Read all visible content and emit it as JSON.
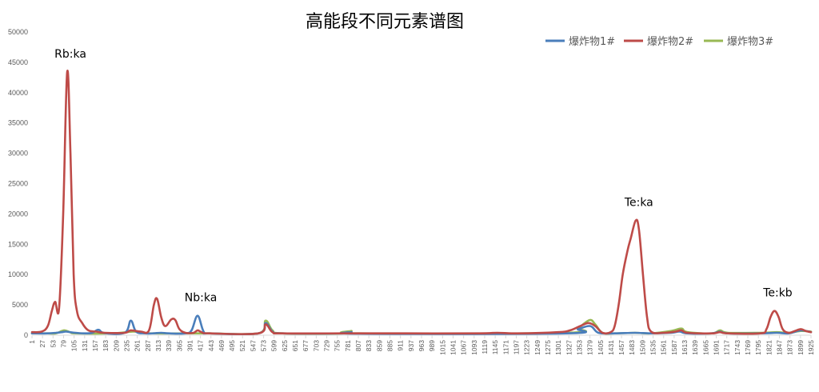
{
  "chart_data": {
    "type": "line",
    "title": "高能段不同元素谱图",
    "xlabel": "",
    "ylabel": "",
    "ylim": [
      0,
      50000
    ],
    "yticks": [
      0,
      5000,
      10000,
      15000,
      20000,
      25000,
      30000,
      35000,
      40000,
      45000,
      50000
    ],
    "xlim": [
      1,
      1925
    ],
    "x_tick_labels": [
      1,
      27,
      53,
      79,
      105,
      131,
      157,
      183,
      209,
      235,
      261,
      287,
      313,
      339,
      365,
      391,
      417,
      443,
      469,
      495,
      521,
      547,
      573,
      599,
      625,
      651,
      677,
      703,
      729,
      755,
      781,
      807,
      833,
      859,
      885,
      911,
      937,
      963,
      989,
      1015,
      1041,
      1067,
      1093,
      1119,
      1145,
      1171,
      1197,
      1223,
      1249,
      1275,
      1301,
      1327,
      1353,
      1379,
      1405,
      1431,
      1457,
      1483,
      1509,
      1535,
      1561,
      1587,
      1613,
      1639,
      1665,
      1691,
      1717,
      1743,
      1769,
      1795,
      1821,
      1847,
      1873,
      1899,
      1925
    ],
    "grid": false,
    "legend_position": "top-right",
    "series": [
      {
        "name": "爆炸物1#",
        "color": "#4a7ebb",
        "points": [
          [
            1,
            300
          ],
          [
            40,
            300
          ],
          [
            60,
            400
          ],
          [
            75,
            500
          ],
          [
            85,
            600
          ],
          [
            100,
            450
          ],
          [
            130,
            300
          ],
          [
            150,
            400
          ],
          [
            165,
            900
          ],
          [
            180,
            350
          ],
          [
            230,
            400
          ],
          [
            245,
            2400
          ],
          [
            258,
            600
          ],
          [
            280,
            300
          ],
          [
            300,
            300
          ],
          [
            320,
            400
          ],
          [
            340,
            300
          ],
          [
            380,
            300
          ],
          [
            395,
            800
          ],
          [
            410,
            3200
          ],
          [
            425,
            600
          ],
          [
            440,
            300
          ],
          [
            560,
            300
          ],
          [
            578,
            2000
          ],
          [
            595,
            600
          ],
          [
            620,
            300
          ],
          [
            770,
            300
          ],
          [
            790,
            500
          ],
          [
            810,
            250
          ],
          [
            1320,
            300
          ],
          [
            1350,
            1000
          ],
          [
            1380,
            1500
          ],
          [
            1400,
            400
          ],
          [
            1440,
            300
          ],
          [
            1490,
            400
          ],
          [
            1530,
            300
          ],
          [
            1580,
            400
          ],
          [
            1600,
            600
          ],
          [
            1620,
            300
          ],
          [
            1680,
            300
          ],
          [
            1700,
            600
          ],
          [
            1720,
            300
          ],
          [
            1800,
            300
          ],
          [
            1840,
            400
          ],
          [
            1870,
            300
          ],
          [
            1900,
            800
          ],
          [
            1925,
            500
          ]
        ]
      },
      {
        "name": "爆炸物2#",
        "color": "#be4b48",
        "points": [
          [
            1,
            500
          ],
          [
            25,
            600
          ],
          [
            40,
            1500
          ],
          [
            50,
            4000
          ],
          [
            58,
            5500
          ],
          [
            68,
            4500
          ],
          [
            78,
            20000
          ],
          [
            88,
            43400
          ],
          [
            96,
            30000
          ],
          [
            104,
            10000
          ],
          [
            112,
            4000
          ],
          [
            125,
            2000
          ],
          [
            140,
            800
          ],
          [
            160,
            600
          ],
          [
            180,
            400
          ],
          [
            230,
            400
          ],
          [
            245,
            800
          ],
          [
            270,
            600
          ],
          [
            290,
            800
          ],
          [
            302,
            5000
          ],
          [
            310,
            6000
          ],
          [
            320,
            3000
          ],
          [
            330,
            1500
          ],
          [
            345,
            2600
          ],
          [
            355,
            2500
          ],
          [
            365,
            1000
          ],
          [
            380,
            400
          ],
          [
            400,
            400
          ],
          [
            410,
            800
          ],
          [
            420,
            500
          ],
          [
            440,
            300
          ],
          [
            560,
            300
          ],
          [
            578,
            1800
          ],
          [
            595,
            500
          ],
          [
            620,
            300
          ],
          [
            770,
            300
          ],
          [
            800,
            300
          ],
          [
            900,
            300
          ],
          [
            1100,
            300
          ],
          [
            1150,
            400
          ],
          [
            1200,
            300
          ],
          [
            1300,
            500
          ],
          [
            1330,
            800
          ],
          [
            1355,
            1500
          ],
          [
            1375,
            2000
          ],
          [
            1392,
            1500
          ],
          [
            1410,
            400
          ],
          [
            1430,
            500
          ],
          [
            1440,
            1500
          ],
          [
            1450,
            5000
          ],
          [
            1460,
            10000
          ],
          [
            1472,
            14000
          ],
          [
            1480,
            16000
          ],
          [
            1492,
            18900
          ],
          [
            1500,
            17500
          ],
          [
            1510,
            10000
          ],
          [
            1520,
            3000
          ],
          [
            1530,
            600
          ],
          [
            1560,
            400
          ],
          [
            1590,
            600
          ],
          [
            1605,
            800
          ],
          [
            1620,
            400
          ],
          [
            1680,
            300
          ],
          [
            1700,
            500
          ],
          [
            1720,
            300
          ],
          [
            1800,
            300
          ],
          [
            1815,
            1000
          ],
          [
            1825,
            3000
          ],
          [
            1835,
            4000
          ],
          [
            1845,
            3000
          ],
          [
            1855,
            1000
          ],
          [
            1870,
            400
          ],
          [
            1885,
            700
          ],
          [
            1900,
            1000
          ],
          [
            1912,
            700
          ],
          [
            1925,
            500
          ]
        ]
      },
      {
        "name": "爆炸物3#",
        "color": "#98b954",
        "points": [
          [
            1,
            300
          ],
          [
            40,
            300
          ],
          [
            60,
            300
          ],
          [
            80,
            800
          ],
          [
            95,
            500
          ],
          [
            110,
            300
          ],
          [
            200,
            300
          ],
          [
            250,
            600
          ],
          [
            270,
            400
          ],
          [
            300,
            300
          ],
          [
            400,
            300
          ],
          [
            440,
            300
          ],
          [
            560,
            300
          ],
          [
            578,
            2400
          ],
          [
            595,
            800
          ],
          [
            620,
            300
          ],
          [
            770,
            300
          ],
          [
            790,
            700
          ],
          [
            810,
            300
          ],
          [
            1320,
            400
          ],
          [
            1350,
            1200
          ],
          [
            1378,
            2500
          ],
          [
            1392,
            1800
          ],
          [
            1410,
            400
          ],
          [
            1440,
            300
          ],
          [
            1490,
            400
          ],
          [
            1530,
            300
          ],
          [
            1580,
            700
          ],
          [
            1605,
            1100
          ],
          [
            1620,
            500
          ],
          [
            1680,
            300
          ],
          [
            1700,
            800
          ],
          [
            1720,
            400
          ],
          [
            1800,
            400
          ],
          [
            1840,
            500
          ],
          [
            1870,
            400
          ],
          [
            1900,
            700
          ],
          [
            1925,
            600
          ]
        ]
      }
    ],
    "annotations": [
      {
        "text": "Rb:ka",
        "x": 88,
        "y": 43400
      },
      {
        "text": "Nb:ka",
        "x": 410,
        "y": 3200
      },
      {
        "text": "Te:ka",
        "x": 1492,
        "y": 18900
      },
      {
        "text": "Te:kb",
        "x": 1835,
        "y": 4000
      }
    ]
  }
}
